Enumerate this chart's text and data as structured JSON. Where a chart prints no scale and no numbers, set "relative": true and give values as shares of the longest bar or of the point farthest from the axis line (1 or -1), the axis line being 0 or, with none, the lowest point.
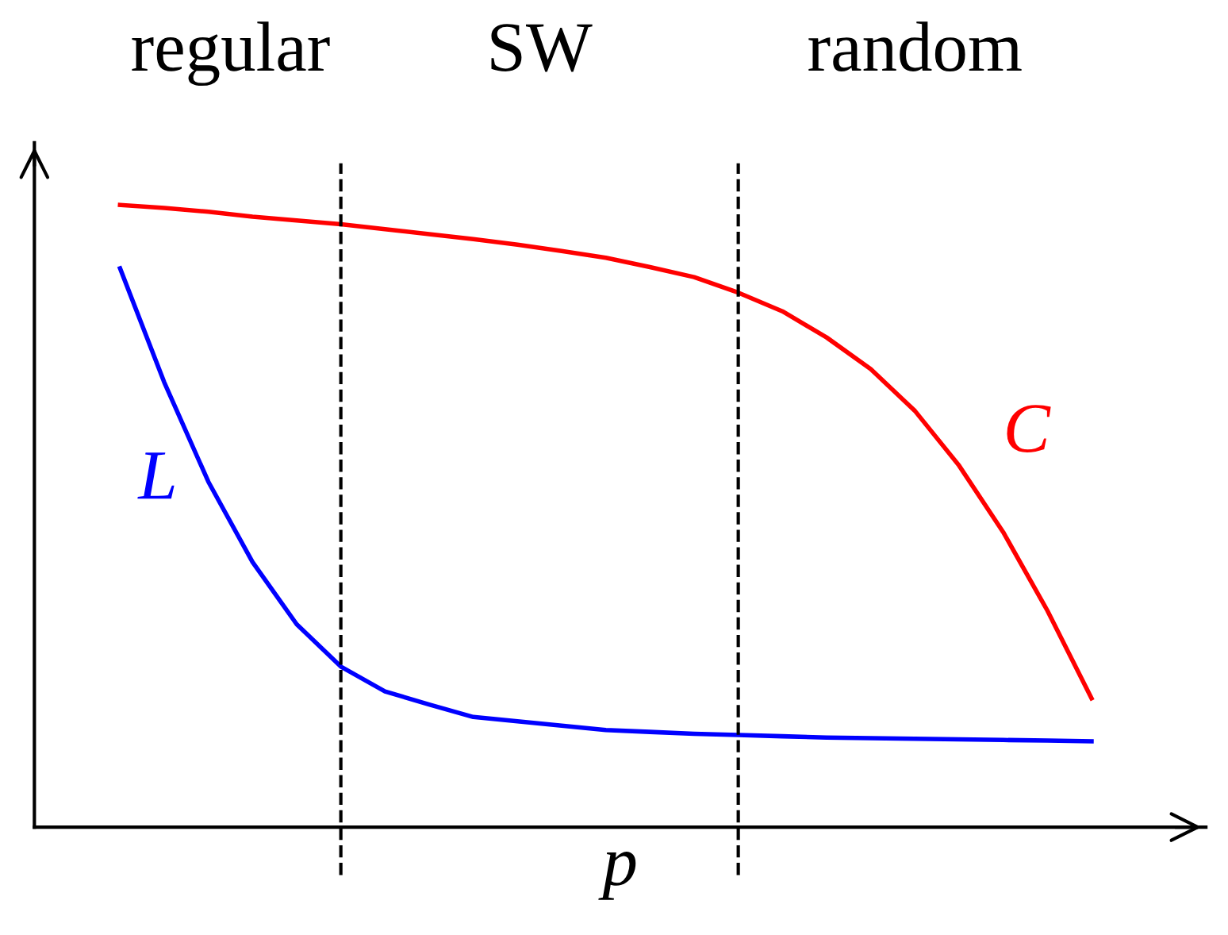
{
  "chart_data": {
    "type": "line",
    "relative": true,
    "xlabel": "p",
    "tick_labels": false,
    "legend": false,
    "marker": "none",
    "line_style": "solid",
    "categories": [
      null,
      null,
      null,
      null,
      null,
      null,
      null,
      null,
      null,
      null,
      null,
      null,
      null,
      null,
      null,
      null,
      null,
      null,
      null,
      null,
      null,
      null,
      null
    ],
    "series": [
      {
        "name": "C",
        "color": "#ff0000",
        "values": [
          1.0,
          0.995,
          0.989,
          0.981,
          0.975,
          0.969,
          0.961,
          0.953,
          0.945,
          0.936,
          0.926,
          0.915,
          0.9,
          0.884,
          0.859,
          0.829,
          0.787,
          0.736,
          0.669,
          0.581,
          0.474,
          0.348,
          0.207
        ]
      },
      {
        "name": "L",
        "color": "#0000ff",
        "values": [
          0.898,
          0.715,
          0.555,
          0.426,
          0.326,
          0.258,
          0.218,
          0.197,
          0.177,
          0.17,
          0.163,
          0.156,
          0.153,
          0.15,
          0.148,
          0.146,
          0.144,
          0.143,
          0.142,
          0.141,
          0.14,
          0.139,
          0.138
        ]
      }
    ],
    "annotations": [
      "regular",
      "SW",
      "random"
    ]
  }
}
